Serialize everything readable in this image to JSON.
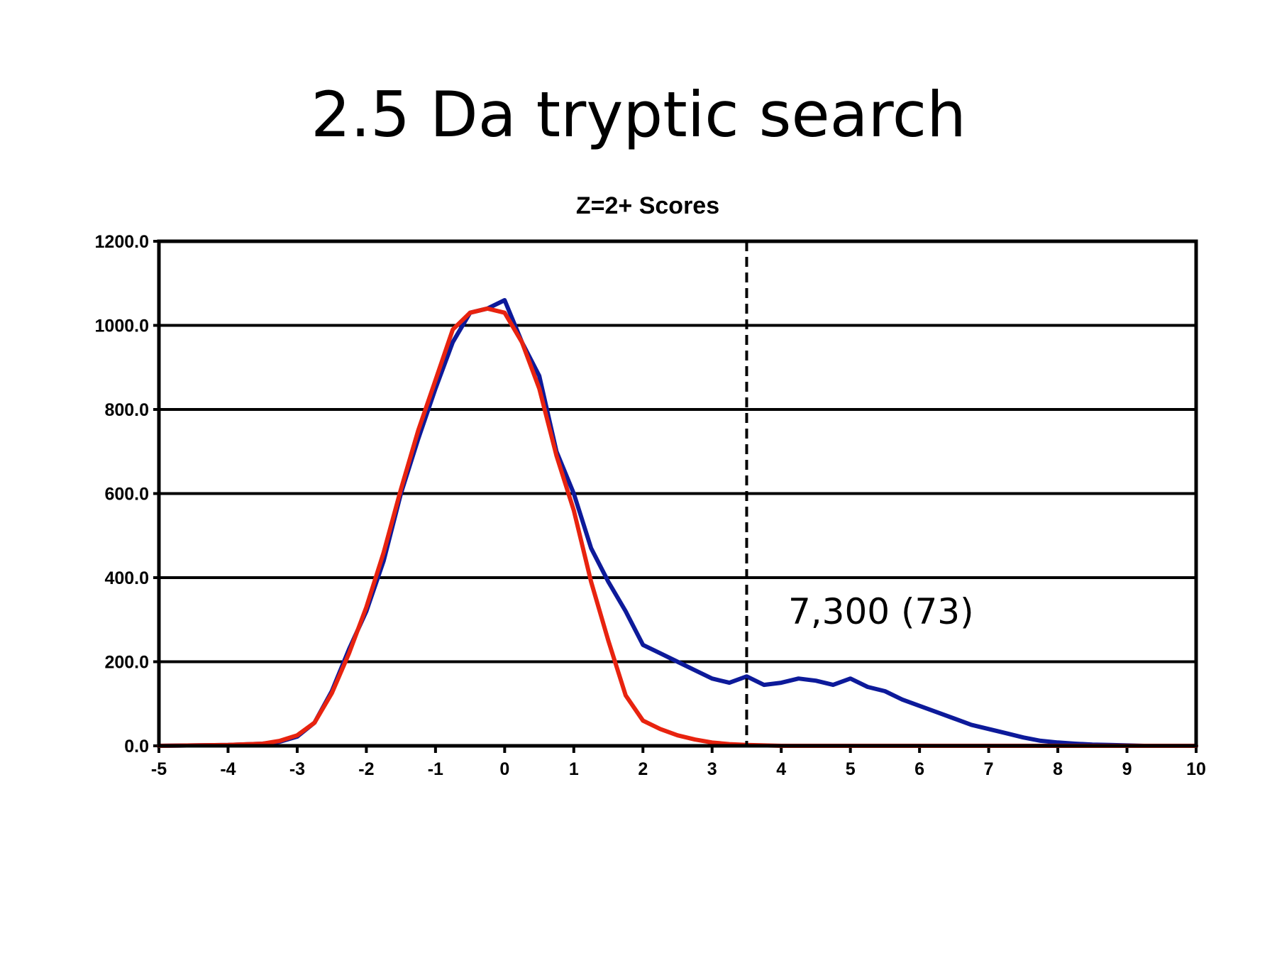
{
  "slide": {
    "title": "2.5 Da tryptic search"
  },
  "colors": {
    "series_blue": "#0d1a9a",
    "series_red": "#e8230f",
    "grid": "#000000",
    "threshold": "#000000"
  },
  "chart_data": {
    "type": "line",
    "title": "Z=2+ Scores",
    "xlabel": "",
    "ylabel": "",
    "xlim": [
      -5,
      10
    ],
    "ylim": [
      0,
      1200
    ],
    "xticks": [
      "-5",
      "-4",
      "-3",
      "-2",
      "-1",
      "0",
      "1",
      "2",
      "3",
      "4",
      "5",
      "6",
      "7",
      "8",
      "9",
      "10"
    ],
    "yticks": [
      "0.0",
      "200.0",
      "400.0",
      "600.0",
      "800.0",
      "1000.0",
      "1200.0"
    ],
    "grid": true,
    "legend": "none",
    "threshold_x": 3.5,
    "annotation": {
      "text": "7,300 (73)",
      "x": 4.1,
      "y": 290
    },
    "series": [
      {
        "color": "#0d1a9a",
        "x": [
          -5,
          -4.5,
          -4,
          -3.5,
          -3.25,
          -3,
          -2.75,
          -2.5,
          -2.25,
          -2,
          -1.75,
          -1.5,
          -1.25,
          -1,
          -0.75,
          -0.5,
          -0.25,
          0,
          0.25,
          0.5,
          0.75,
          1,
          1.25,
          1.5,
          1.75,
          2,
          2.25,
          2.5,
          2.75,
          3,
          3.25,
          3.5,
          3.75,
          4,
          4.25,
          4.5,
          4.75,
          5,
          5.25,
          5.5,
          5.75,
          6,
          6.25,
          6.5,
          6.75,
          7,
          7.25,
          7.5,
          7.75,
          8,
          8.25,
          8.5,
          8.75,
          9,
          9.25,
          10
        ],
        "y": [
          0,
          1,
          2,
          5,
          10,
          22,
          55,
          130,
          230,
          320,
          440,
          600,
          730,
          850,
          960,
          1030,
          1040,
          1060,
          960,
          880,
          700,
          600,
          470,
          390,
          320,
          240,
          220,
          200,
          180,
          160,
          150,
          165,
          145,
          150,
          160,
          155,
          145,
          160,
          140,
          130,
          110,
          95,
          80,
          65,
          50,
          40,
          30,
          20,
          12,
          8,
          5,
          3,
          2,
          1,
          0,
          0
        ]
      },
      {
        "color": "#e8230f",
        "x": [
          -5,
          -4.5,
          -4,
          -3.5,
          -3.25,
          -3,
          -2.75,
          -2.5,
          -2.25,
          -2,
          -1.75,
          -1.5,
          -1.25,
          -1,
          -0.75,
          -0.5,
          -0.25,
          0,
          0.25,
          0.5,
          0.75,
          1,
          1.25,
          1.5,
          1.75,
          2,
          2.25,
          2.5,
          2.75,
          3,
          3.25,
          3.5,
          3.75,
          4,
          4.25,
          4.5,
          5,
          6,
          7,
          8,
          9,
          10
        ],
        "y": [
          0,
          1,
          2,
          5,
          12,
          25,
          55,
          125,
          220,
          330,
          460,
          610,
          750,
          870,
          990,
          1030,
          1040,
          1030,
          960,
          850,
          690,
          560,
          390,
          250,
          120,
          60,
          40,
          25,
          15,
          8,
          4,
          2,
          1,
          0,
          0,
          0,
          0,
          0,
          0,
          0,
          0,
          0
        ]
      }
    ]
  }
}
